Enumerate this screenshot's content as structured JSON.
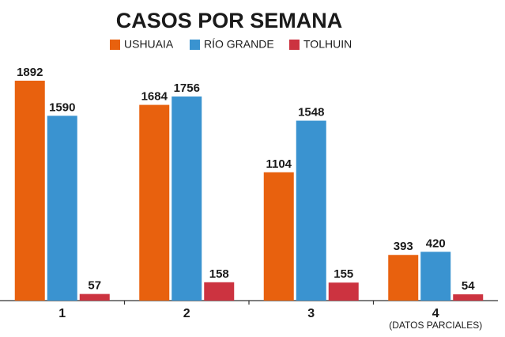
{
  "chart_data": {
    "type": "bar",
    "title": "CASOS POR SEMANA",
    "categories": [
      "1",
      "2",
      "3",
      "4"
    ],
    "series": [
      {
        "name": "USHUAIA",
        "color": "#e8610e",
        "values": [
          1892,
          1684,
          1104,
          393
        ]
      },
      {
        "name": "RÍO GRANDE",
        "color": "#3a93d0",
        "values": [
          1590,
          1756,
          1548,
          420
        ]
      },
      {
        "name": "TOLHUIN",
        "color": "#cc3340",
        "values": [
          57,
          158,
          155,
          54
        ]
      }
    ],
    "annotations": [
      "(DATOS PARCIALES)"
    ],
    "legend": "top"
  }
}
